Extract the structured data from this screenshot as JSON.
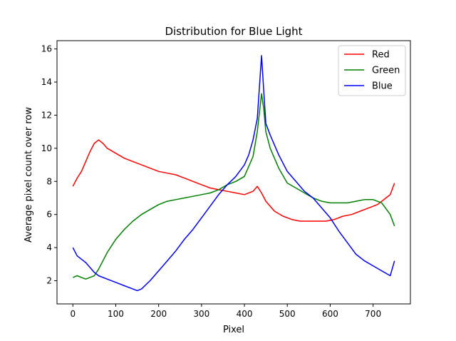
{
  "chart_data": {
    "type": "line",
    "title": "Distribution for Blue Light",
    "xlabel": "Pixel",
    "ylabel": "Average pixel count over row",
    "xlim": [
      -37,
      787
    ],
    "ylim": [
      0.6,
      16.5
    ],
    "xticks": [
      0,
      100,
      200,
      300,
      400,
      500,
      600,
      700
    ],
    "yticks": [
      2,
      4,
      6,
      8,
      10,
      12,
      14,
      16
    ],
    "grid": false,
    "legend": "top-right",
    "series": [
      {
        "name": "Red",
        "color": "#ff0000",
        "points": [
          [
            0,
            7.7
          ],
          [
            10,
            8.2
          ],
          [
            20,
            8.6
          ],
          [
            30,
            9.2
          ],
          [
            40,
            9.8
          ],
          [
            50,
            10.3
          ],
          [
            60,
            10.5
          ],
          [
            70,
            10.3
          ],
          [
            80,
            10.0
          ],
          [
            100,
            9.7
          ],
          [
            120,
            9.4
          ],
          [
            140,
            9.2
          ],
          [
            160,
            9.0
          ],
          [
            180,
            8.8
          ],
          [
            200,
            8.6
          ],
          [
            220,
            8.5
          ],
          [
            240,
            8.4
          ],
          [
            260,
            8.2
          ],
          [
            280,
            8.0
          ],
          [
            300,
            7.8
          ],
          [
            320,
            7.6
          ],
          [
            340,
            7.5
          ],
          [
            360,
            7.4
          ],
          [
            380,
            7.3
          ],
          [
            400,
            7.2
          ],
          [
            420,
            7.4
          ],
          [
            430,
            7.7
          ],
          [
            440,
            7.3
          ],
          [
            450,
            6.8
          ],
          [
            470,
            6.2
          ],
          [
            490,
            5.9
          ],
          [
            510,
            5.7
          ],
          [
            530,
            5.6
          ],
          [
            550,
            5.6
          ],
          [
            570,
            5.6
          ],
          [
            590,
            5.6
          ],
          [
            610,
            5.7
          ],
          [
            630,
            5.9
          ],
          [
            650,
            6.0
          ],
          [
            670,
            6.2
          ],
          [
            690,
            6.4
          ],
          [
            710,
            6.6
          ],
          [
            730,
            7.0
          ],
          [
            740,
            7.2
          ],
          [
            750,
            7.9
          ]
        ]
      },
      {
        "name": "Green",
        "color": "#008000",
        "points": [
          [
            0,
            2.2
          ],
          [
            10,
            2.3
          ],
          [
            20,
            2.2
          ],
          [
            30,
            2.1
          ],
          [
            40,
            2.2
          ],
          [
            50,
            2.3
          ],
          [
            60,
            2.7
          ],
          [
            70,
            3.2
          ],
          [
            80,
            3.7
          ],
          [
            90,
            4.1
          ],
          [
            100,
            4.5
          ],
          [
            120,
            5.1
          ],
          [
            140,
            5.6
          ],
          [
            160,
            6.0
          ],
          [
            180,
            6.3
          ],
          [
            200,
            6.6
          ],
          [
            220,
            6.8
          ],
          [
            240,
            6.9
          ],
          [
            260,
            7.0
          ],
          [
            280,
            7.1
          ],
          [
            300,
            7.2
          ],
          [
            320,
            7.3
          ],
          [
            340,
            7.5
          ],
          [
            360,
            7.8
          ],
          [
            380,
            8.0
          ],
          [
            400,
            8.3
          ],
          [
            420,
            9.5
          ],
          [
            430,
            11.0
          ],
          [
            440,
            13.3
          ],
          [
            445,
            12.4
          ],
          [
            450,
            11.0
          ],
          [
            460,
            10.0
          ],
          [
            480,
            8.8
          ],
          [
            500,
            7.9
          ],
          [
            520,
            7.6
          ],
          [
            540,
            7.3
          ],
          [
            560,
            7.0
          ],
          [
            580,
            6.8
          ],
          [
            600,
            6.7
          ],
          [
            620,
            6.7
          ],
          [
            640,
            6.7
          ],
          [
            660,
            6.8
          ],
          [
            680,
            6.9
          ],
          [
            700,
            6.9
          ],
          [
            720,
            6.7
          ],
          [
            740,
            6.0
          ],
          [
            750,
            5.3
          ]
        ]
      },
      {
        "name": "Blue",
        "color": "#0000ff",
        "points": [
          [
            0,
            4.0
          ],
          [
            10,
            3.5
          ],
          [
            20,
            3.3
          ],
          [
            30,
            3.1
          ],
          [
            40,
            2.8
          ],
          [
            50,
            2.5
          ],
          [
            60,
            2.3
          ],
          [
            80,
            2.1
          ],
          [
            100,
            1.9
          ],
          [
            120,
            1.7
          ],
          [
            140,
            1.5
          ],
          [
            150,
            1.4
          ],
          [
            160,
            1.5
          ],
          [
            180,
            2.0
          ],
          [
            200,
            2.6
          ],
          [
            220,
            3.2
          ],
          [
            240,
            3.8
          ],
          [
            260,
            4.5
          ],
          [
            280,
            5.1
          ],
          [
            300,
            5.8
          ],
          [
            320,
            6.5
          ],
          [
            340,
            7.2
          ],
          [
            360,
            7.8
          ],
          [
            380,
            8.3
          ],
          [
            400,
            9.0
          ],
          [
            410,
            9.6
          ],
          [
            420,
            10.5
          ],
          [
            430,
            11.8
          ],
          [
            440,
            15.6
          ],
          [
            445,
            13.5
          ],
          [
            450,
            11.5
          ],
          [
            460,
            10.8
          ],
          [
            470,
            10.2
          ],
          [
            480,
            9.6
          ],
          [
            490,
            9.1
          ],
          [
            500,
            8.6
          ],
          [
            520,
            8.0
          ],
          [
            540,
            7.4
          ],
          [
            560,
            7.0
          ],
          [
            580,
            6.4
          ],
          [
            600,
            5.8
          ],
          [
            620,
            5.0
          ],
          [
            640,
            4.3
          ],
          [
            660,
            3.6
          ],
          [
            680,
            3.2
          ],
          [
            700,
            2.9
          ],
          [
            720,
            2.6
          ],
          [
            740,
            2.3
          ],
          [
            750,
            3.2
          ]
        ]
      }
    ]
  }
}
